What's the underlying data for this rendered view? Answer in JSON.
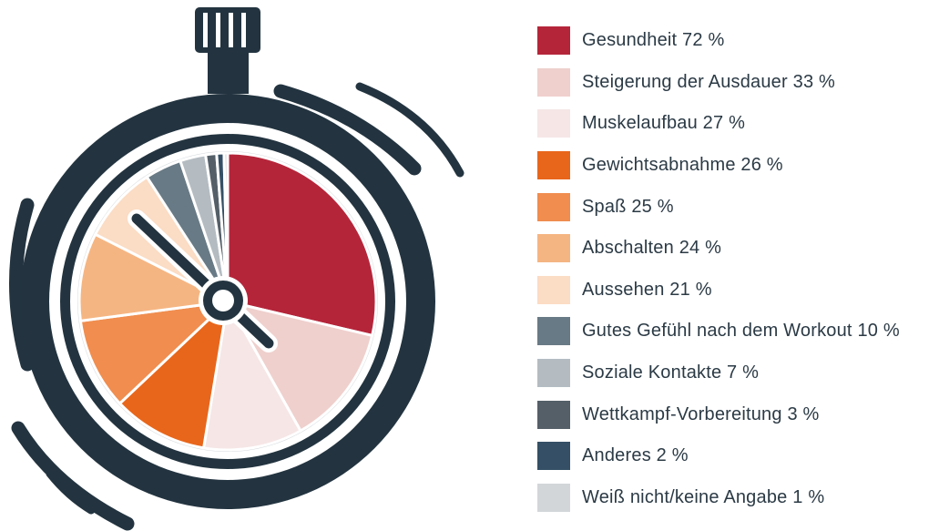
{
  "chart_data": {
    "type": "pie",
    "title": "",
    "slices": [
      {
        "label": "Gesundheit 72 %",
        "value": 72,
        "color": "#b5253a"
      },
      {
        "label": "Steigerung der Ausdauer 33 %",
        "value": 33,
        "color": "#efd0cd"
      },
      {
        "label": "Muskelaufbau 27 %",
        "value": 27,
        "color": "#f6e6e6"
      },
      {
        "label": "Gewichtsabnahme 26 %",
        "value": 26,
        "color": "#e8661b"
      },
      {
        "label": "Spaß 25 %",
        "value": 25,
        "color": "#f08d4f"
      },
      {
        "label": "Abschalten 24 %",
        "value": 24,
        "color": "#f5b582"
      },
      {
        "label": "Aussehen 21 %",
        "value": 21,
        "color": "#fbdcc4"
      },
      {
        "label": "Gutes Gefühl nach dem Workout 10 %",
        "value": 10,
        "color": "#687a85"
      },
      {
        "label": "Soziale Kontakte 7 %",
        "value": 7,
        "color": "#b4bcc2"
      },
      {
        "label": "Wettkampf-Vorbereitung 3 %",
        "value": 3,
        "color": "#545f68"
      },
      {
        "label": "Anderes 2 %",
        "value": 2,
        "color": "#355066"
      },
      {
        "label": "Weiß nicht/keine Angabe 1 %",
        "value": 1,
        "color": "#d2d6d9"
      }
    ],
    "legend_position": "right"
  }
}
